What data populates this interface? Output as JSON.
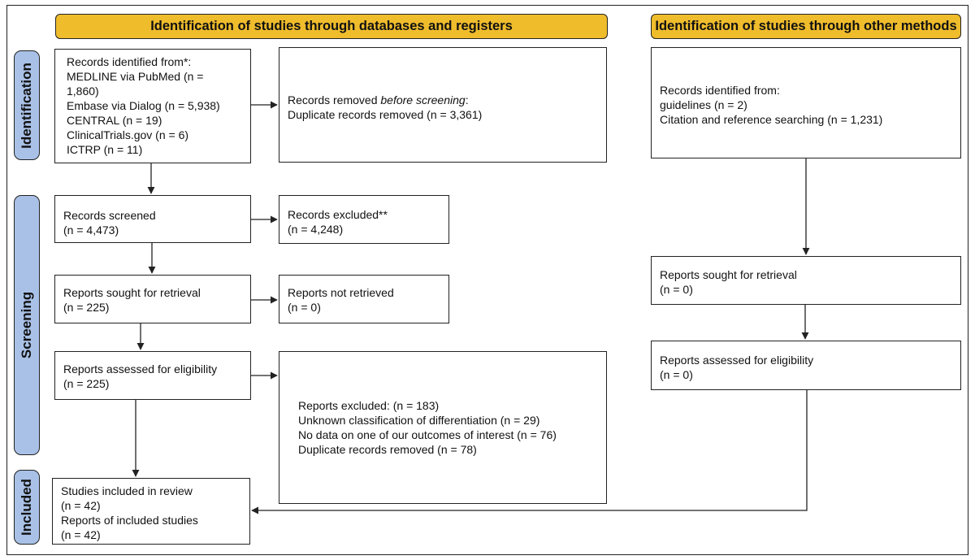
{
  "headers": {
    "databases": "Identification of studies through databases and registers",
    "other": "Identification of studies through other methods"
  },
  "phases": {
    "identification": "Identification",
    "screening": "Screening",
    "included": "Included"
  },
  "boxes": {
    "records_identified": {
      "lines": [
        "Records identified from*:",
        "MEDLINE via PubMed (n =",
        "1,860)",
        "Embase via Dialog (n = 5,938)",
        "CENTRAL  (n = 19)",
        "ClinicalTrials.gov (n = 6)",
        "ICTRP (n = 11)"
      ]
    },
    "records_removed": {
      "line1_prefix": "Records removed ",
      "line1_emph": "before screening",
      "line1_suffix": ":",
      "line2": "Duplicate records removed  (n = 3,361)"
    },
    "records_screened": {
      "lines": [
        "Records screened",
        "(n = 4,473)"
      ]
    },
    "records_excluded": {
      "lines": [
        "Records excluded**",
        "(n = 4,248)"
      ]
    },
    "reports_sought": {
      "lines": [
        "Reports sought for retrieval",
        "(n = 225)"
      ]
    },
    "reports_not_retrieved": {
      "lines": [
        "Reports not retrieved",
        "(n = 0)"
      ]
    },
    "reports_assessed": {
      "lines": [
        "Reports assessed for eligibility",
        "(n = 225)"
      ]
    },
    "reports_excluded": {
      "lines": [
        "Reports excluded: (n = 183)",
        "Unknown classification of differentiation (n = 29)",
        "No data on one of our outcomes of interest (n = 76)",
        "Duplicate records removed  (n = 78)"
      ]
    },
    "studies_included": {
      "lines": [
        "Studies included in review",
        "(n = 42)",
        "Reports of included studies",
        "(n = 42)"
      ]
    },
    "other_identified": {
      "lines": [
        "Records identified from:",
        "guidelines (n = 2)",
        "Citation and reference searching (n = 1,231)"
      ]
    },
    "other_sought": {
      "lines": [
        "Reports sought for retrieval",
        "(n = 0)"
      ]
    },
    "other_assessed": {
      "lines": [
        "Reports assessed for eligibility",
        "(n = 0)"
      ]
    }
  },
  "colors": {
    "header_fill": "#efbc2c",
    "phase_fill": "#a9c1e6",
    "stroke": "#222222"
  }
}
